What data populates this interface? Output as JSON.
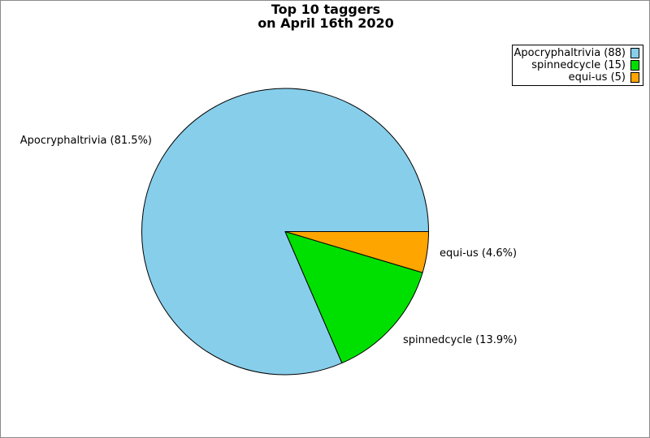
{
  "title": {
    "line1": "Top 10 taggers",
    "line2": "on April 16th 2020"
  },
  "chart_data": {
    "type": "pie",
    "title": "Top 10 taggers on April 16th 2020",
    "start_angle_deg": 0,
    "counterclockwise": true,
    "edge_color": "#000000",
    "legend_position": "upper right",
    "total": 108,
    "slices": [
      {
        "label": "Apocryphaltrivia",
        "count": 88,
        "percent": 81.5,
        "color": "#87CEEB",
        "wedge_label": "Apocryphaltrivia (81.5%)",
        "legend_label": "Apocryphaltrivia (88)"
      },
      {
        "label": "spinnedcycle",
        "count": 15,
        "percent": 13.9,
        "color": "#00E000",
        "wedge_label": "spinnedcycle (13.9%)",
        "legend_label": "spinnedcycle (15)"
      },
      {
        "label": "equi-us",
        "count": 5,
        "percent": 4.6,
        "color": "#FFA500",
        "wedge_label": "equi-us (4.6%)",
        "legend_label": "equi-us (5)"
      }
    ]
  }
}
